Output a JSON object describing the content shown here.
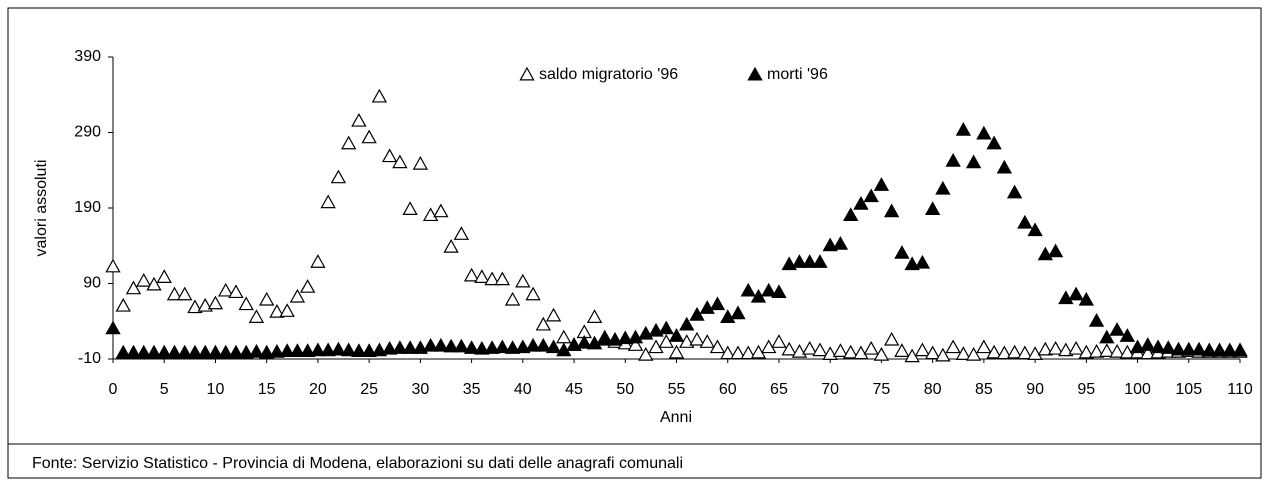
{
  "chart_data": {
    "type": "scatter",
    "y_label": "valori assoluti",
    "x_label": "Anni",
    "source": "Fonte: Servizio Statistico - Provincia di Modena, elaborazioni su dati delle anagrafi comunali",
    "x": [
      0,
      1,
      2,
      3,
      4,
      5,
      6,
      7,
      8,
      9,
      10,
      11,
      12,
      13,
      14,
      15,
      16,
      17,
      18,
      19,
      20,
      21,
      22,
      23,
      24,
      25,
      26,
      27,
      28,
      29,
      30,
      31,
      32,
      33,
      34,
      35,
      36,
      37,
      38,
      39,
      40,
      41,
      42,
      43,
      44,
      45,
      46,
      47,
      48,
      49,
      50,
      51,
      52,
      53,
      54,
      55,
      56,
      57,
      58,
      59,
      60,
      61,
      62,
      63,
      64,
      65,
      66,
      67,
      68,
      69,
      70,
      71,
      72,
      73,
      74,
      75,
      76,
      77,
      78,
      79,
      80,
      81,
      82,
      83,
      84,
      85,
      86,
      87,
      88,
      89,
      90,
      91,
      92,
      93,
      94,
      95,
      96,
      97,
      98,
      99,
      100,
      101,
      102,
      103,
      104,
      105,
      106,
      107,
      108,
      109,
      110
    ],
    "series": [
      {
        "name": "saldo migratorio '96",
        "filled": false,
        "color": "#000000",
        "values": [
          112,
          60,
          83,
          93,
          88,
          98,
          75,
          75,
          58,
          60,
          63,
          80,
          78,
          62,
          45,
          68,
          52,
          53,
          72,
          85,
          118,
          197,
          230,
          275,
          305,
          283,
          337,
          258,
          250,
          188,
          248,
          180,
          185,
          138,
          155,
          100,
          98,
          95,
          95,
          68,
          92,
          75,
          35,
          47,
          18,
          8,
          25,
          45,
          18,
          12,
          10,
          8,
          -5,
          5,
          12,
          -2,
          12,
          15,
          12,
          5,
          -3,
          -3,
          -3,
          -2,
          5,
          12,
          2,
          -1,
          3,
          1,
          -4,
          0,
          -2,
          -3,
          3,
          -5,
          15,
          0,
          -7,
          1,
          -3,
          -6,
          5,
          -4,
          -5,
          5,
          -2,
          -3,
          -2,
          -3,
          -4,
          2,
          3,
          1,
          3,
          -2,
          -1,
          0,
          -1,
          -2,
          -2,
          -3,
          -2,
          -1,
          -1,
          0,
          -1,
          -1,
          -1,
          -1,
          -1
        ]
      },
      {
        "name": "morti '96",
        "filled": true,
        "color": "#000000",
        "values": [
          30,
          -2,
          -2,
          -2,
          -2,
          -2,
          -2,
          -2,
          -2,
          -2,
          -2,
          -2,
          -2,
          -2,
          -1,
          -2,
          -1,
          0,
          0,
          0,
          1,
          1,
          2,
          1,
          0,
          0,
          1,
          3,
          4,
          4,
          4,
          7,
          7,
          6,
          6,
          4,
          3,
          4,
          5,
          4,
          5,
          7,
          7,
          5,
          1,
          8,
          11,
          10,
          15,
          15,
          17,
          18,
          23,
          27,
          30,
          20,
          35,
          48,
          57,
          62,
          45,
          50,
          80,
          72,
          80,
          78,
          115,
          118,
          118,
          118,
          140,
          142,
          180,
          195,
          205,
          220,
          185,
          130,
          115,
          117,
          188,
          215,
          252,
          293,
          250,
          288,
          275,
          243,
          210,
          170,
          160,
          128,
          132,
          70,
          75,
          68,
          40,
          18,
          28,
          20,
          5,
          8,
          5,
          4,
          2,
          2,
          2,
          1,
          1,
          1,
          1
        ]
      }
    ],
    "xlim": [
      0,
      110
    ],
    "xticks": [
      0,
      5,
      10,
      15,
      20,
      25,
      30,
      35,
      40,
      45,
      50,
      55,
      60,
      65,
      70,
      75,
      80,
      85,
      90,
      95,
      100,
      105,
      110
    ],
    "ylim": [
      -10,
      390
    ],
    "yticks": [
      -10,
      90,
      190,
      290,
      390
    ]
  }
}
